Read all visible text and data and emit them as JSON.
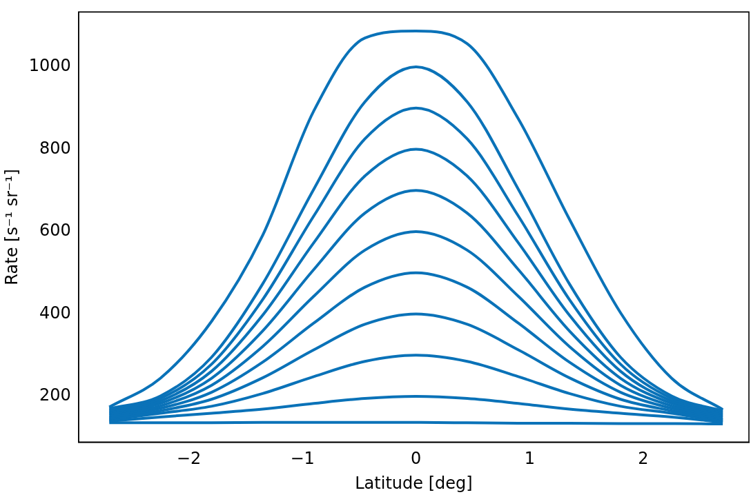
{
  "chart_data": {
    "type": "line",
    "xlabel": "Latitude [deg]",
    "ylabel": "Rate [s⁻¹ sr⁻¹]",
    "x": [
      -2.7,
      -2.25,
      -1.8,
      -1.35,
      -0.9,
      -0.45,
      0,
      0.45,
      0.9,
      1.35,
      1.8,
      2.25,
      2.7
    ],
    "xlim": [
      -2.97,
      2.93
    ],
    "xticks": [
      -2,
      -1,
      0,
      1,
      2
    ],
    "ylim": [
      89,
      1133
    ],
    "yticks": [
      200,
      400,
      600,
      800,
      1000
    ],
    "grid": false,
    "legend": false,
    "marker": "none",
    "line_style": "solid",
    "series": [
      {
        "color": "#0a72b8",
        "values": [
          174,
          244,
          382,
          591,
          893,
          1070,
          1087,
          1056,
          874,
          630,
          403,
          244,
          168
        ]
      },
      {
        "color": "#0a72b8",
        "values": [
          170,
          201,
          295,
          473,
          703,
          915,
          1000,
          915,
          703,
          473,
          295,
          201,
          165
        ]
      },
      {
        "color": "#0a72b8",
        "values": [
          166,
          195,
          278,
          435,
          638,
          825,
          900,
          825,
          638,
          435,
          278,
          195,
          161
        ]
      },
      {
        "color": "#0a72b8",
        "values": [
          162,
          189,
          261,
          397,
          573,
          735,
          800,
          735,
          573,
          397,
          261,
          189,
          157
        ]
      },
      {
        "color": "#0a72b8",
        "values": [
          158,
          183,
          244,
          359,
          508,
          645,
          700,
          645,
          508,
          359,
          244,
          183,
          153
        ]
      },
      {
        "color": "#0a72b8",
        "values": [
          154,
          177,
          227,
          321,
          443,
          555,
          600,
          555,
          443,
          321,
          227,
          177,
          149
        ]
      },
      {
        "color": "#0a72b8",
        "values": [
          150,
          171,
          210,
          283,
          378,
          465,
          500,
          465,
          378,
          283,
          210,
          171,
          145
        ]
      },
      {
        "color": "#0a72b8",
        "values": [
          146,
          165,
          193,
          245,
          313,
          375,
          400,
          375,
          313,
          245,
          193,
          165,
          142
        ]
      },
      {
        "color": "#0a72b8",
        "values": [
          143,
          159,
          176,
          207,
          248,
          285,
          300,
          285,
          248,
          207,
          176,
          159,
          139
        ]
      },
      {
        "color": "#0a72b8",
        "values": [
          140,
          150,
          159,
          169,
          183,
          195,
          200,
          195,
          183,
          169,
          159,
          150,
          137
        ]
      },
      {
        "color": "#0a72b8",
        "values": [
          136,
          136,
          136,
          137,
          137,
          137,
          137,
          136,
          135,
          135,
          134,
          134,
          133
        ]
      }
    ]
  }
}
